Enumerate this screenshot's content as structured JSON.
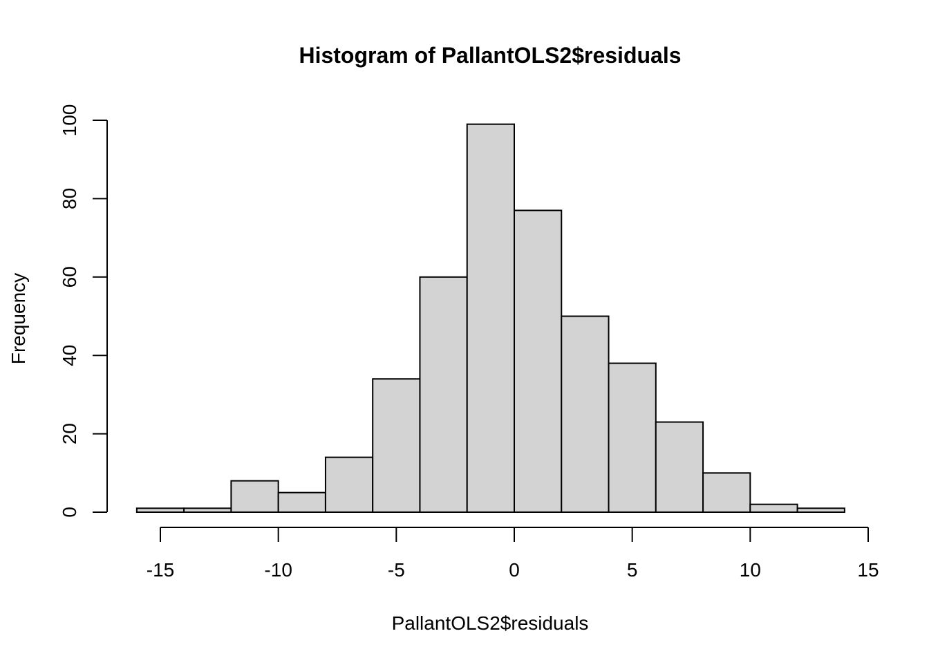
{
  "chart_data": {
    "type": "bar",
    "title": "Histogram of PallantOLS2$residuals",
    "xlabel": "PallantOLS2$residuals",
    "ylabel": "Frequency",
    "bin_edges": [
      -16,
      -14,
      -12,
      -10,
      -8,
      -6,
      -4,
      -2,
      0,
      2,
      4,
      6,
      8,
      10,
      12,
      14
    ],
    "values": [
      1,
      1,
      8,
      5,
      14,
      34,
      60,
      99,
      77,
      50,
      38,
      23,
      10,
      2,
      1
    ],
    "xlim": [
      -15,
      15
    ],
    "ylim": [
      0,
      100
    ],
    "x_ticks": [
      -15,
      -10,
      -5,
      0,
      5,
      10,
      15
    ],
    "y_ticks": [
      0,
      20,
      40,
      60,
      80,
      100
    ],
    "grid": false,
    "bar_fill": "#d3d3d3",
    "bar_stroke": "#000000"
  }
}
